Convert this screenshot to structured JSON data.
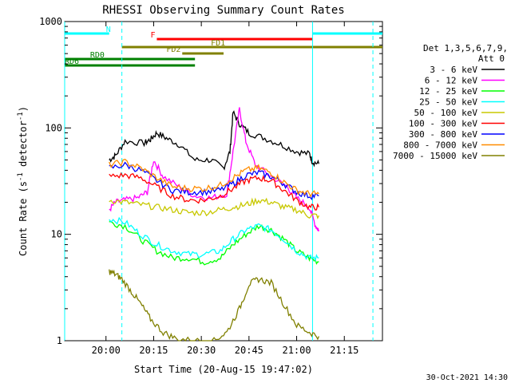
{
  "chart_data": {
    "type": "line",
    "title": "RHESSI Observing Summary Count Rates",
    "xlabel": "Start Time (20-Aug-15 19:47:02)",
    "ylabel_main": "Count Rate (s",
    "ylabel_sup1": "-1",
    "ylabel_mid": " detector",
    "ylabel_sup2": "-1",
    "ylabel_end": ")",
    "date_stamp": "30-Oct-2021 14:30",
    "y_scale": "log",
    "xlim": [
      "19:47",
      "21:27"
    ],
    "ylim": [
      1,
      1000
    ],
    "x_ticks": [
      "20:00",
      "20:15",
      "20:30",
      "20:45",
      "21:00",
      "21:15"
    ],
    "y_ticks": [
      "1",
      "10",
      "100",
      "1000"
    ],
    "legend_header_1": "Det 1,3,5,6,7,9,",
    "legend_header_2": "Att 0",
    "series": [
      {
        "name": "3 - 6 keV",
        "color": "#000000",
        "x": [
          "20:01",
          "20:03",
          "20:06",
          "20:12",
          "20:14",
          "20:16",
          "20:19",
          "20:23",
          "20:28",
          "20:33",
          "20:37",
          "20:39",
          "20:40",
          "20:42",
          "20:45",
          "20:50",
          "20:55",
          "21:00",
          "21:04",
          "21:05",
          "21:07"
        ],
        "y": [
          50,
          55,
          75,
          72,
          78,
          90,
          80,
          70,
          50,
          50,
          42,
          60,
          140,
          110,
          90,
          80,
          70,
          60,
          57,
          48,
          46
        ]
      },
      {
        "name": "6 - 12 keV",
        "color": "#ff00ff",
        "x": [
          "20:01",
          "20:03",
          "20:06",
          "20:10",
          "20:13",
          "20:15",
          "20:18",
          "20:23",
          "20:28",
          "20:33",
          "20:38",
          "20:40",
          "20:42",
          "20:44",
          "20:47",
          "20:52",
          "20:57",
          "21:00",
          "21:04",
          "21:06",
          "21:07"
        ],
        "y": [
          17,
          20,
          21,
          22,
          25,
          50,
          35,
          28,
          23,
          22,
          24,
          60,
          150,
          75,
          45,
          35,
          28,
          22,
          18,
          12,
          11
        ]
      },
      {
        "name": "12 - 25 keV",
        "color": "#00ff00",
        "x": [
          "20:01",
          "20:06",
          "20:11",
          "20:16",
          "20:21",
          "20:26",
          "20:31",
          "20:36",
          "20:40",
          "20:44",
          "20:48",
          "20:52",
          "20:56",
          "21:00",
          "21:04",
          "21:07"
        ],
        "y": [
          13,
          12,
          9,
          7,
          6,
          6,
          5.5,
          6,
          8,
          10,
          12,
          11,
          9,
          7,
          6,
          5.5
        ]
      },
      {
        "name": "25 - 50 keV",
        "color": "#00ffff",
        "x": [
          "20:01",
          "20:06",
          "20:11",
          "20:16",
          "20:21",
          "20:26",
          "20:31",
          "20:36",
          "20:40",
          "20:44",
          "20:48",
          "20:52",
          "20:56",
          "21:00",
          "21:04",
          "21:07"
        ],
        "y": [
          14,
          13,
          10,
          8,
          7,
          6.5,
          6.5,
          7,
          9,
          11,
          12,
          11,
          9,
          7,
          6,
          6
        ]
      },
      {
        "name": "50 - 100 keV",
        "color": "#c8c800",
        "x": [
          "20:01",
          "20:06",
          "20:11",
          "20:16",
          "20:21",
          "20:26",
          "20:31",
          "20:36",
          "20:40",
          "20:44",
          "20:48",
          "20:52",
          "20:56",
          "21:00",
          "21:04",
          "21:07"
        ],
        "y": [
          21,
          20,
          19,
          18,
          17,
          16,
          16,
          17,
          18,
          19,
          21,
          20,
          18,
          17,
          15,
          15
        ]
      },
      {
        "name": "100 - 300 keV",
        "color": "#ff0000",
        "x": [
          "20:01",
          "20:06",
          "20:11",
          "20:16",
          "20:21",
          "20:26",
          "20:31",
          "20:36",
          "20:40",
          "20:44",
          "20:48",
          "20:52",
          "20:56",
          "21:00",
          "21:04",
          "21:07"
        ],
        "y": [
          35,
          36,
          34,
          28,
          23,
          21,
          21,
          23,
          27,
          32,
          34,
          32,
          26,
          21,
          18,
          18
        ]
      },
      {
        "name": "300 - 800 keV",
        "color": "#0000ff",
        "x": [
          "20:01",
          "20:06",
          "20:11",
          "20:16",
          "20:21",
          "20:26",
          "20:31",
          "20:36",
          "20:40",
          "20:44",
          "20:48",
          "20:52",
          "20:56",
          "21:00",
          "21:04",
          "21:07"
        ],
        "y": [
          42,
          45,
          40,
          32,
          26,
          25,
          25,
          26,
          30,
          36,
          38,
          35,
          30,
          25,
          23,
          23
        ]
      },
      {
        "name": "800 - 7000 keV",
        "color": "#ff8c00",
        "x": [
          "20:01",
          "20:06",
          "20:11",
          "20:16",
          "20:21",
          "20:26",
          "20:31",
          "20:36",
          "20:40",
          "20:44",
          "20:48",
          "20:52",
          "20:56",
          "21:00",
          "21:04",
          "21:07"
        ],
        "y": [
          45,
          48,
          42,
          34,
          28,
          27,
          27,
          29,
          34,
          40,
          42,
          38,
          31,
          26,
          24,
          24
        ]
      },
      {
        "name": "7000 - 15000 keV",
        "color": "#808000",
        "x": [
          "20:01",
          "20:03",
          "20:05",
          "20:08",
          "20:11",
          "20:14",
          "20:18",
          "20:22",
          "20:28",
          "20:34",
          "20:38",
          "20:42",
          "20:45",
          "20:48",
          "20:52",
          "20:56",
          "21:00",
          "21:04",
          "21:07"
        ],
        "y": [
          4.5,
          4.2,
          3.8,
          2.9,
          2.2,
          1.6,
          1.2,
          1.05,
          1,
          1,
          1.2,
          2,
          3.4,
          3.8,
          3.5,
          2.2,
          1.4,
          1.2,
          1.1
        ]
      }
    ],
    "segments": [
      {
        "label": "N",
        "color": "#00ffff",
        "x": [
          "19:47",
          "20:01"
        ],
        "level": "n",
        "label_at": "20:00"
      },
      {
        "label": "",
        "color": "#00ffff",
        "x": [
          "21:05",
          "21:27"
        ],
        "level": "n",
        "label_at": ""
      },
      {
        "label": "F",
        "color": "#ff0000",
        "x": [
          "20:16",
          "21:05"
        ],
        "level": "f",
        "label_at": "20:14"
      },
      {
        "label": "FD1",
        "color": "#808000",
        "x": [
          "20:05",
          "21:27"
        ],
        "level": "fd1",
        "label_at": "20:33"
      },
      {
        "label": "FD2",
        "color": "#808000",
        "x": [
          "20:24",
          "20:37"
        ],
        "level": "fd2",
        "label_at": "20:19"
      },
      {
        "label": "RD0",
        "color": "#008000",
        "x": [
          "19:47",
          "20:28"
        ],
        "level": "rd0",
        "label_at": "19:55"
      },
      {
        "label": "RD6",
        "color": "#008000",
        "x": [
          "19:47",
          "20:28"
        ],
        "level": "rd6",
        "label_at": "19:47"
      }
    ],
    "vlines_solid": [
      "19:47",
      "21:05"
    ],
    "vlines_dashed": [
      "20:05",
      "21:24"
    ]
  }
}
